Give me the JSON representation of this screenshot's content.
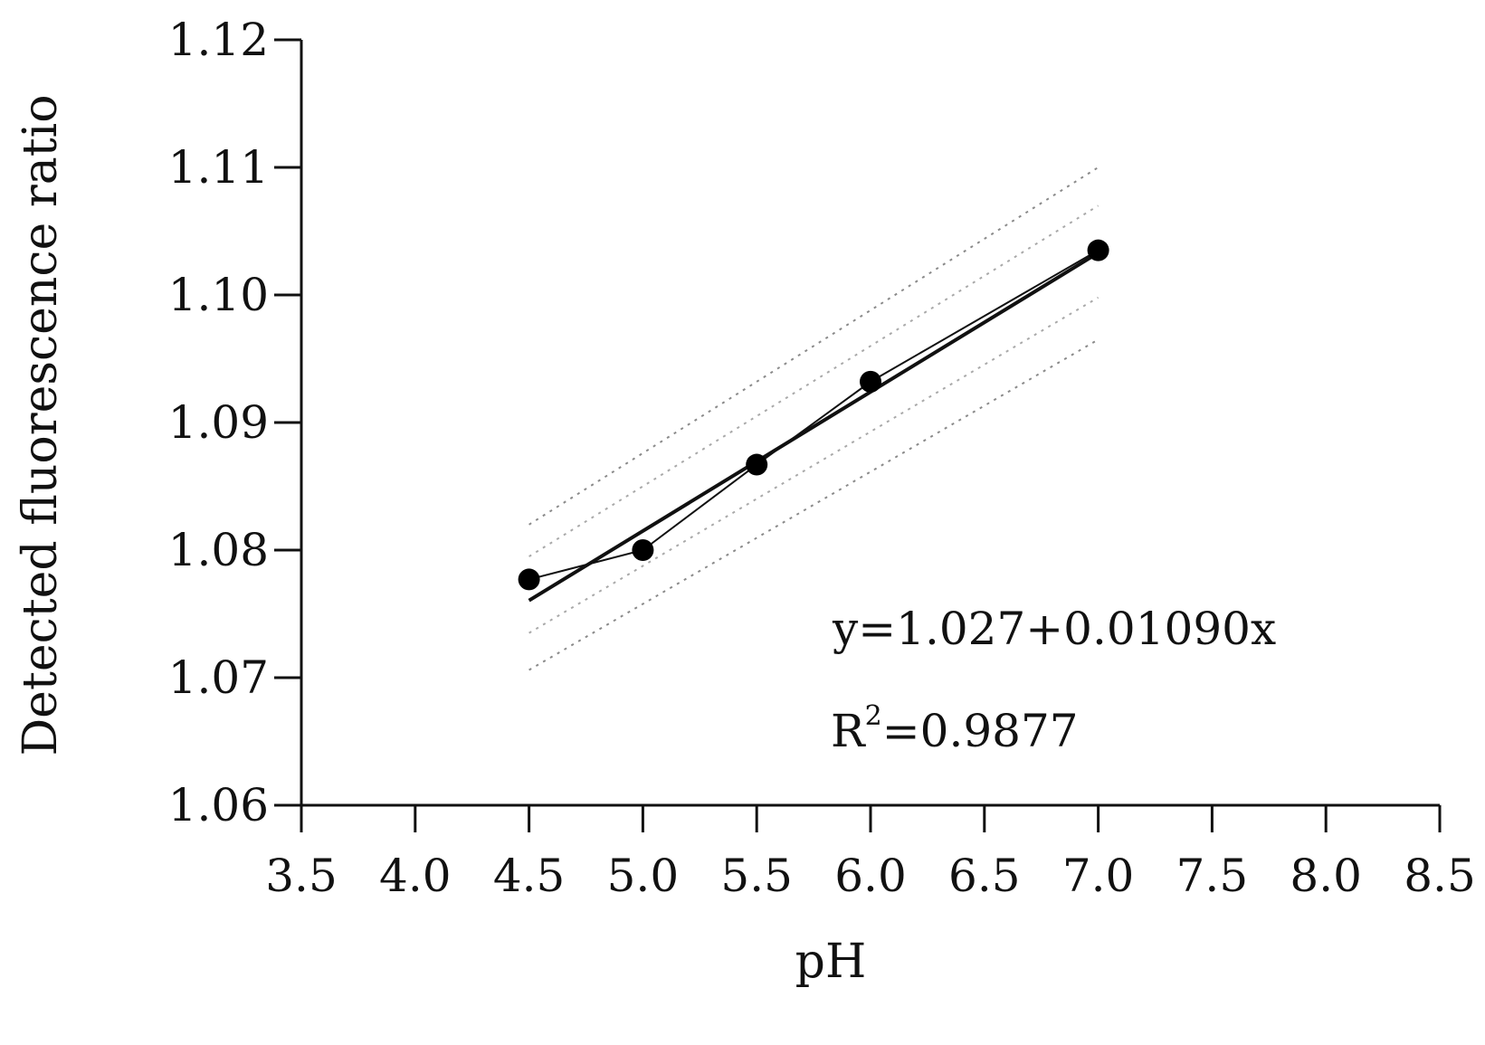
{
  "chart_data": {
    "type": "scatter",
    "xlabel": "pH",
    "ylabel": "Detected fluorescence ratio",
    "xlim": [
      3.5,
      8.5
    ],
    "ylim": [
      1.06,
      1.12
    ],
    "x_ticks": [
      "3.5",
      "4.0",
      "4.5",
      "5.0",
      "5.5",
      "6.0",
      "6.5",
      "7.0",
      "7.5",
      "8.0",
      "8.5"
    ],
    "y_ticks": [
      "1.06",
      "1.07",
      "1.08",
      "1.09",
      "1.10",
      "1.11",
      "1.12"
    ],
    "grid": false,
    "series": [
      {
        "x": [
          4.5,
          5.0,
          5.5,
          6.0,
          7.0
        ],
        "y": [
          1.0777,
          1.08,
          1.0867,
          1.0932,
          1.1035
        ]
      }
    ],
    "fit": {
      "intercept": 1.027,
      "slope": 0.0109,
      "x_range": [
        4.5,
        7.0
      ]
    },
    "bands": [
      {
        "style": "dotted",
        "upper_at_start": 1.082,
        "upper_at_end": 1.11,
        "lower_at_start": 1.0706,
        "lower_at_end": 1.0965
      },
      {
        "style": "dotted",
        "upper_at_start": 1.0795,
        "upper_at_end": 1.107,
        "lower_at_start": 1.0735,
        "lower_at_end": 1.0998
      }
    ],
    "annotation": {
      "equation": "y=1.027+0.01090x",
      "r2_base": "R",
      "r2_exp": "2",
      "r2_value": "=0.9877"
    }
  }
}
